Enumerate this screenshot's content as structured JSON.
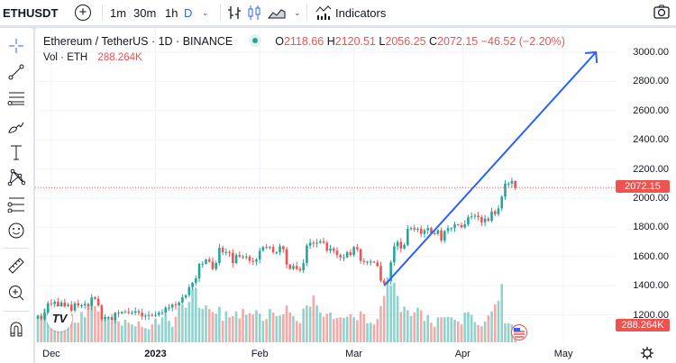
{
  "header": {
    "symbol": "ETHUSDT",
    "intervals": [
      "1m",
      "30m",
      "1h",
      "D"
    ],
    "active_interval": "D",
    "indicators_label": "Indicators"
  },
  "legend": {
    "title": "Ethereum / TetherUS · 1D · BINANCE",
    "o_label": "O",
    "o": "2118.66",
    "h_label": "H",
    "h": "2120.51",
    "l_label": "L",
    "l": "2056.25",
    "c_label": "C",
    "c": "2072.15",
    "change": "−46.52 (−2.20%)",
    "vol_label": "Vol · ETH",
    "vol": "288.264K"
  },
  "price_axis": {
    "labels": [
      "3000.00",
      "2800.00",
      "2600.00",
      "2400.00",
      "2200.00",
      "2000.00",
      "1800.00",
      "1600.00",
      "1400.00",
      "1200.00"
    ],
    "last_price_tag": "2072.15",
    "volume_tag": "288.264K"
  },
  "time_axis": {
    "labels": [
      "Dec",
      "2023",
      "Feb",
      "Mar",
      "Apr",
      "May"
    ]
  },
  "colors": {
    "up": "#26a69a",
    "down": "#ef5350",
    "accent": "#2962ff"
  },
  "chart_data": {
    "type": "candlestick",
    "start_date": "2022-11-27",
    "end_date": "2023-04-18",
    "ylim": [
      1100,
      3050
    ],
    "last_candle": {
      "open": 2118.66,
      "high": 2120.51,
      "low": 2056.25,
      "close": 2072.15
    },
    "closes": [
      1195,
      1170,
      1215,
      1280,
      1275,
      1290,
      1245,
      1285,
      1260,
      1270,
      1230,
      1280,
      1265,
      1265,
      1275,
      1260,
      1320,
      1310,
      1265,
      1170,
      1185,
      1185,
      1165,
      1215,
      1210,
      1220,
      1220,
      1215,
      1215,
      1225,
      1215,
      1190,
      1195,
      1200,
      1195,
      1200,
      1215,
      1215,
      1250,
      1250,
      1270,
      1265,
      1285,
      1320,
      1335,
      1390,
      1420,
      1450,
      1550,
      1550,
      1580,
      1565,
      1515,
      1555,
      1660,
      1630,
      1630,
      1625,
      1555,
      1610,
      1600,
      1595,
      1600,
      1570,
      1565,
      1580,
      1640,
      1665,
      1660,
      1665,
      1630,
      1630,
      1670,
      1650,
      1545,
      1515,
      1535,
      1515,
      1505,
      1555,
      1675,
      1695,
      1690,
      1695,
      1705,
      1695,
      1640,
      1655,
      1640,
      1610,
      1595,
      1595,
      1630,
      1610,
      1665,
      1650,
      1570,
      1565,
      1565,
      1565,
      1560,
      1535,
      1435,
      1415,
      1430,
      1560,
      1670,
      1700,
      1655,
      1680,
      1790,
      1795,
      1785,
      1790,
      1755,
      1780,
      1795,
      1760,
      1755,
      1780,
      1710,
      1775,
      1795,
      1795,
      1820,
      1815,
      1800,
      1820,
      1870,
      1875,
      1880,
      1870,
      1835,
      1860,
      1845,
      1910,
      1890,
      1930,
      2010,
      2100,
      2100,
      2118.66,
      2072.15
    ],
    "volumes_k": [
      420,
      380,
      560,
      500,
      520,
      470,
      380,
      560,
      520,
      490,
      480,
      330,
      330,
      510,
      420,
      620,
      720,
      610,
      520,
      450,
      380,
      410,
      330,
      430,
      350,
      280,
      380,
      330,
      300,
      270,
      350,
      260,
      240,
      220,
      300,
      400,
      300,
      420,
      460,
      360,
      260,
      430,
      600,
      640,
      580,
      680,
      900,
      920,
      580,
      560,
      620,
      560,
      510,
      480,
      600,
      360,
      520,
      420,
      440,
      520,
      400,
      560,
      460,
      490,
      470,
      540,
      480,
      360,
      390,
      560,
      500,
      440,
      450,
      470,
      620,
      500,
      440,
      360,
      320,
      570,
      620,
      600,
      790,
      620,
      500,
      430,
      480,
      500,
      390,
      410,
      420,
      410,
      430,
      470,
      420,
      370,
      520,
      470,
      320,
      330,
      300,
      390,
      610,
      780,
      950,
      960,
      1000,
      780,
      510,
      600,
      540,
      440,
      500,
      580,
      540,
      360,
      460,
      330,
      260,
      420,
      420,
      420,
      430,
      420,
      380,
      350,
      300,
      500,
      510,
      460,
      340,
      290,
      270,
      350,
      450,
      520,
      640,
      700,
      980,
      320,
      320,
      300,
      288.264
    ],
    "trendline": {
      "from": {
        "date": "2023-03-10",
        "price": 1400
      },
      "to": {
        "date": "2023-05-12",
        "price": 3000
      }
    }
  }
}
